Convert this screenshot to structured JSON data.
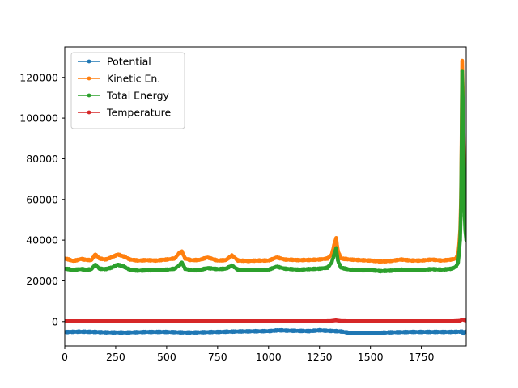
{
  "chart_data": {
    "type": "line",
    "title": "",
    "xlabel": "",
    "ylabel": "",
    "xlim": [
      0,
      1970
    ],
    "ylim": [
      -12000,
      135000
    ],
    "x_ticks": [
      0,
      250,
      500,
      750,
      1000,
      1250,
      1500,
      1750
    ],
    "x_tick_labels": [
      "0",
      "250",
      "500",
      "750",
      "1000",
      "1250",
      "1500",
      "1750"
    ],
    "y_ticks": [
      0,
      20000,
      40000,
      60000,
      80000,
      100000,
      120000
    ],
    "y_tick_labels": [
      "0",
      "20000",
      "40000",
      "60000",
      "80000",
      "100000",
      "120000"
    ],
    "grid": false,
    "legend_position": "top-left",
    "series": [
      {
        "name": "Potential",
        "color": "#1f77b4",
        "marker": "point",
        "points": [
          [
            0,
            -5200
          ],
          [
            50,
            -5000
          ],
          [
            100,
            -5000
          ],
          [
            150,
            -5100
          ],
          [
            200,
            -5300
          ],
          [
            300,
            -5400
          ],
          [
            400,
            -5100
          ],
          [
            500,
            -5100
          ],
          [
            600,
            -5400
          ],
          [
            700,
            -5200
          ],
          [
            800,
            -5000
          ],
          [
            900,
            -4800
          ],
          [
            1000,
            -4700
          ],
          [
            1050,
            -4300
          ],
          [
            1100,
            -4500
          ],
          [
            1200,
            -4700
          ],
          [
            1250,
            -4300
          ],
          [
            1300,
            -4600
          ],
          [
            1350,
            -4800
          ],
          [
            1400,
            -5600
          ],
          [
            1500,
            -5700
          ],
          [
            1600,
            -5300
          ],
          [
            1700,
            -5100
          ],
          [
            1800,
            -5100
          ],
          [
            1900,
            -5100
          ],
          [
            1930,
            -5000
          ],
          [
            1950,
            -5000
          ],
          [
            1958,
            -6000
          ],
          [
            1963,
            -5000
          ],
          [
            1970,
            -5000
          ]
        ]
      },
      {
        "name": "Kinetic En.",
        "color": "#ff7f0e",
        "marker": "point",
        "points": [
          [
            0,
            31000
          ],
          [
            20,
            30500
          ],
          [
            40,
            29800
          ],
          [
            60,
            30200
          ],
          [
            80,
            30800
          ],
          [
            100,
            30400
          ],
          [
            130,
            30200
          ],
          [
            150,
            33000
          ],
          [
            170,
            31000
          ],
          [
            200,
            30500
          ],
          [
            230,
            31500
          ],
          [
            260,
            33000
          ],
          [
            290,
            32000
          ],
          [
            320,
            30500
          ],
          [
            360,
            30000
          ],
          [
            400,
            30200
          ],
          [
            450,
            30000
          ],
          [
            500,
            30500
          ],
          [
            540,
            31000
          ],
          [
            560,
            33500
          ],
          [
            575,
            34500
          ],
          [
            590,
            31000
          ],
          [
            620,
            30200
          ],
          [
            660,
            30300
          ],
          [
            700,
            31500
          ],
          [
            750,
            30000
          ],
          [
            790,
            30200
          ],
          [
            820,
            32500
          ],
          [
            850,
            30000
          ],
          [
            900,
            29800
          ],
          [
            950,
            30000
          ],
          [
            1000,
            30000
          ],
          [
            1040,
            31500
          ],
          [
            1080,
            30500
          ],
          [
            1150,
            30200
          ],
          [
            1200,
            30300
          ],
          [
            1250,
            30500
          ],
          [
            1290,
            31000
          ],
          [
            1310,
            33000
          ],
          [
            1325,
            39000
          ],
          [
            1332,
            41000
          ],
          [
            1340,
            35000
          ],
          [
            1355,
            31000
          ],
          [
            1400,
            30500
          ],
          [
            1450,
            30200
          ],
          [
            1500,
            30000
          ],
          [
            1550,
            29500
          ],
          [
            1600,
            29800
          ],
          [
            1650,
            30500
          ],
          [
            1700,
            30000
          ],
          [
            1750,
            30000
          ],
          [
            1800,
            30500
          ],
          [
            1850,
            30000
          ],
          [
            1900,
            30500
          ],
          [
            1920,
            31000
          ],
          [
            1930,
            33000
          ],
          [
            1935,
            38000
          ],
          [
            1940,
            45000
          ],
          [
            1944,
            60000
          ],
          [
            1947,
            90000
          ],
          [
            1950,
            128000
          ],
          [
            1953,
            115000
          ],
          [
            1956,
            100000
          ],
          [
            1959,
            80000
          ],
          [
            1962,
            70000
          ],
          [
            1965,
            68000
          ],
          [
            1970,
            69000
          ]
        ]
      },
      {
        "name": "Total Energy",
        "color": "#2ca02c",
        "marker": "point",
        "points": [
          [
            0,
            26000
          ],
          [
            20,
            25800
          ],
          [
            40,
            25200
          ],
          [
            60,
            25600
          ],
          [
            80,
            25800
          ],
          [
            100,
            25500
          ],
          [
            130,
            25700
          ],
          [
            150,
            28000
          ],
          [
            170,
            26000
          ],
          [
            200,
            25800
          ],
          [
            230,
            26500
          ],
          [
            260,
            28000
          ],
          [
            290,
            27000
          ],
          [
            320,
            25500
          ],
          [
            360,
            25000
          ],
          [
            400,
            25200
          ],
          [
            450,
            25300
          ],
          [
            500,
            25500
          ],
          [
            540,
            26000
          ],
          [
            560,
            27500
          ],
          [
            575,
            29000
          ],
          [
            590,
            26000
          ],
          [
            620,
            25200
          ],
          [
            660,
            25300
          ],
          [
            700,
            26300
          ],
          [
            750,
            25800
          ],
          [
            790,
            26000
          ],
          [
            820,
            27500
          ],
          [
            850,
            25500
          ],
          [
            900,
            25300
          ],
          [
            950,
            25300
          ],
          [
            1000,
            25500
          ],
          [
            1040,
            27000
          ],
          [
            1080,
            26000
          ],
          [
            1150,
            25500
          ],
          [
            1200,
            25800
          ],
          [
            1250,
            26000
          ],
          [
            1290,
            26500
          ],
          [
            1310,
            29000
          ],
          [
            1325,
            34000
          ],
          [
            1332,
            36000
          ],
          [
            1340,
            30000
          ],
          [
            1355,
            26500
          ],
          [
            1400,
            25500
          ],
          [
            1450,
            25200
          ],
          [
            1500,
            25300
          ],
          [
            1550,
            24800
          ],
          [
            1600,
            25000
          ],
          [
            1650,
            25500
          ],
          [
            1700,
            25300
          ],
          [
            1750,
            25300
          ],
          [
            1800,
            25800
          ],
          [
            1850,
            25500
          ],
          [
            1900,
            26000
          ],
          [
            1920,
            27000
          ],
          [
            1930,
            29000
          ],
          [
            1935,
            34000
          ],
          [
            1940,
            40000
          ],
          [
            1944,
            55000
          ],
          [
            1947,
            85000
          ],
          [
            1950,
            123000
          ],
          [
            1953,
            110000
          ],
          [
            1956,
            95000
          ],
          [
            1959,
            75000
          ],
          [
            1962,
            52000
          ],
          [
            1965,
            45000
          ],
          [
            1970,
            40000
          ]
        ]
      },
      {
        "name": "Temperature",
        "color": "#d62728",
        "marker": "point",
        "points": [
          [
            0,
            200
          ],
          [
            200,
            200
          ],
          [
            400,
            200
          ],
          [
            600,
            200
          ],
          [
            800,
            200
          ],
          [
            1000,
            200
          ],
          [
            1200,
            200
          ],
          [
            1300,
            250
          ],
          [
            1330,
            600
          ],
          [
            1360,
            250
          ],
          [
            1500,
            200
          ],
          [
            1700,
            200
          ],
          [
            1900,
            200
          ],
          [
            1940,
            400
          ],
          [
            1950,
            1000
          ],
          [
            1960,
            700
          ],
          [
            1970,
            500
          ]
        ]
      }
    ]
  }
}
